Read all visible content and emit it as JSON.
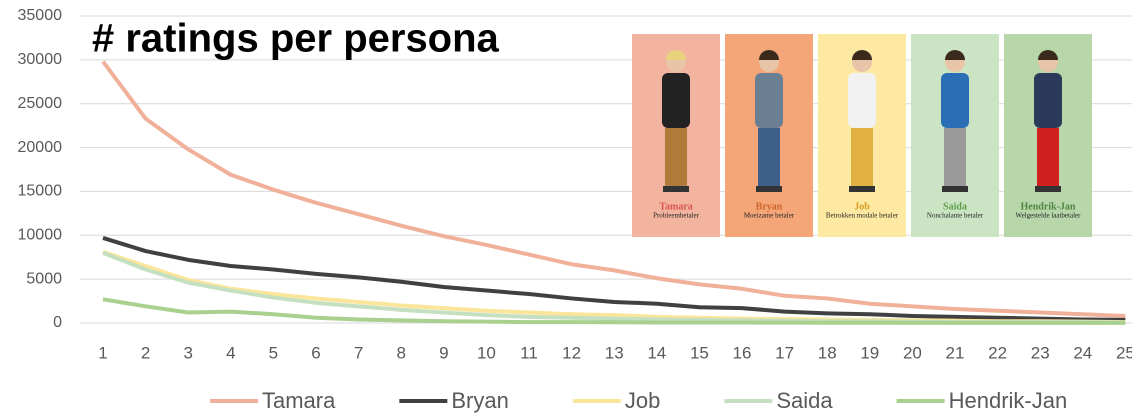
{
  "chart_data": {
    "type": "line",
    "title": "# ratings per persona",
    "categories": [
      "1",
      "2",
      "3",
      "4",
      "5",
      "6",
      "7",
      "8",
      "9",
      "10",
      "11",
      "12",
      "13",
      "14",
      "15",
      "16",
      "17",
      "18",
      "19",
      "20",
      "21",
      "22",
      "23",
      "24",
      "25"
    ],
    "series": [
      {
        "name": "Tamara",
        "color": "#f0b09a",
        "values": [
          29800,
          23300,
          19800,
          16900,
          15200,
          13700,
          12400,
          11100,
          9900,
          8900,
          7800,
          6700,
          6000,
          5100,
          4400,
          3900,
          3100,
          2800,
          2200,
          1900,
          1600,
          1400,
          1200,
          1000,
          800
        ]
      },
      {
        "name": "Bryan",
        "color": "#404040",
        "values": [
          9700,
          8200,
          7200,
          6500,
          6100,
          5600,
          5200,
          4700,
          4100,
          3700,
          3300,
          2800,
          2400,
          2200,
          1800,
          1700,
          1300,
          1100,
          1000,
          800,
          700,
          600,
          500,
          400,
          350
        ]
      },
      {
        "name": "Job",
        "color": "#fbe59a",
        "values": [
          8100,
          6500,
          4900,
          3900,
          3300,
          2800,
          2400,
          2000,
          1700,
          1400,
          1200,
          1000,
          900,
          700,
          600,
          500,
          450,
          400,
          350,
          300,
          250,
          200,
          200,
          150,
          100
        ]
      },
      {
        "name": "Saida",
        "color": "#c5e0c0",
        "values": [
          8000,
          6100,
          4600,
          3700,
          2900,
          2300,
          1900,
          1500,
          1200,
          900,
          700,
          600,
          500,
          400,
          350,
          300,
          250,
          200,
          200,
          150,
          100,
          100,
          100,
          80,
          50
        ]
      },
      {
        "name": "Hendrik-Jan",
        "color": "#a9d08e",
        "values": [
          2700,
          1900,
          1200,
          1300,
          1000,
          600,
          400,
          300,
          200,
          150,
          100,
          100,
          80,
          60,
          50,
          50,
          40,
          30,
          30,
          20,
          20,
          20,
          10,
          10,
          10
        ]
      }
    ],
    "ylim": [
      0,
      35000
    ],
    "yticks": [
      0,
      5000,
      10000,
      15000,
      20000,
      25000,
      30000,
      35000
    ],
    "grid": true,
    "legend": "bottom"
  },
  "personas": [
    {
      "name": "Tamara",
      "subtitle": "Probleembetaler",
      "color": "#f2b49e",
      "name_color": "#d9534f"
    },
    {
      "name": "Bryan",
      "subtitle": "Moeizame betaler",
      "color": "#f5a679",
      "name_color": "#d0662a"
    },
    {
      "name": "Job",
      "subtitle": "Betrokken modale betaler",
      "color": "#fde9a2",
      "name_color": "#d89a20"
    },
    {
      "name": "Saïda",
      "subtitle": "Nonchalante betaler",
      "color": "#cbe5c4",
      "name_color": "#5e9e48"
    },
    {
      "name": "Hendrik-Jan",
      "subtitle": "Welgestelde laatbetaler",
      "color": "#b7d7aa",
      "name_color": "#4f8540"
    }
  ]
}
